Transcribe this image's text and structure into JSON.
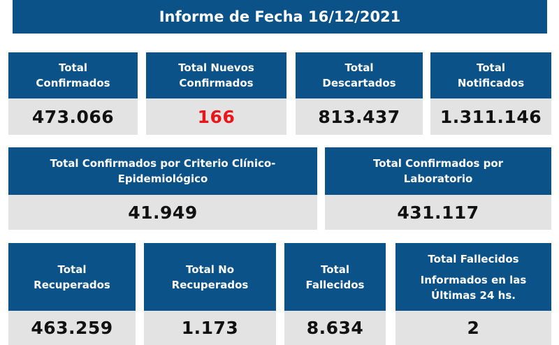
{
  "report": {
    "title": "Informe de Fecha 16/12/2021"
  },
  "row1": [
    {
      "label_line1": "Total",
      "label_line2": "Confirmados",
      "value": "473.066"
    },
    {
      "label_line1": "Total Nuevos",
      "label_line2": "Confirmados",
      "value": "166",
      "value_color": "#e8171b"
    },
    {
      "label_line1": "Total",
      "label_line2": "Descartados",
      "value": "813.437"
    },
    {
      "label_line1": "Total",
      "label_line2": "Notificados",
      "value": "1.311.146"
    }
  ],
  "row2": [
    {
      "label_line1": "Total Confirmados por Criterio Clínico-",
      "label_line2": "Epidemiológico",
      "value": "41.949"
    },
    {
      "label_line1": "Total Confirmados por",
      "label_line2": "Laboratorio",
      "value": "431.117"
    }
  ],
  "row3": [
    {
      "label_line1": "Total",
      "label_line2": "Recuperados",
      "value": "463.259"
    },
    {
      "label_line1": "Total No",
      "label_line2": "Recuperados",
      "value": "1.173"
    },
    {
      "label_line1": "Total",
      "label_line2": "Fallecidos",
      "value": "8.634"
    },
    {
      "label_line1": "Total Fallecidos",
      "label_line2": "Informados en las",
      "label_line3": "Últimas 24 hs.",
      "value": "2"
    }
  ],
  "colors": {
    "header_blue": "#0b5288",
    "value_bg": "#e3e3e3",
    "highlight_red": "#e8171b"
  }
}
